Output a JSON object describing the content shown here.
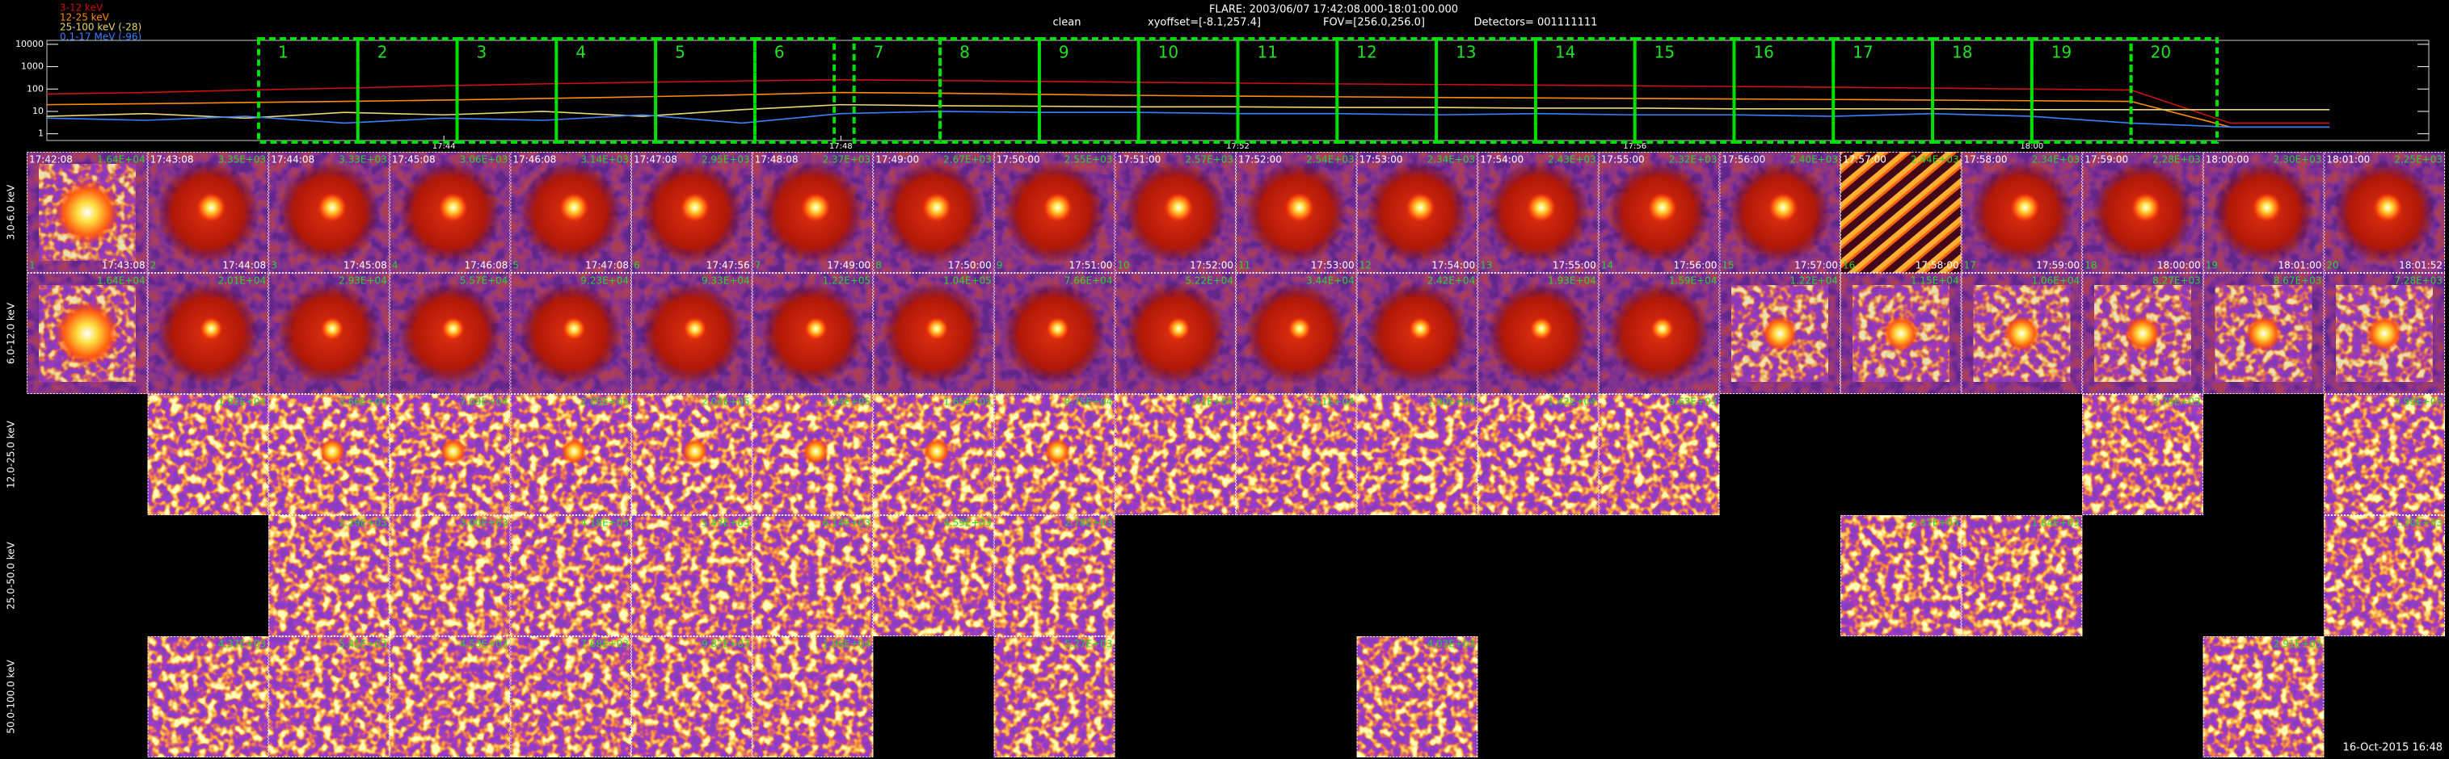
{
  "header": {
    "title": "FLARE: 2003/06/07 17:42:08.000-18:01:00.000",
    "method": "clean",
    "xyoffset": "xyoffset=[-8.1,257.4]",
    "fov": "FOV=[256.0,256.0]",
    "detectors": "Detectors= 001111111"
  },
  "chart_data": {
    "type": "line",
    "log_y": true,
    "x": [
      "17:40",
      "17:41",
      "17:42",
      "17:43",
      "17:44",
      "17:45",
      "17:46",
      "17:47",
      "17:48",
      "17:49",
      "17:50",
      "17:51",
      "17:52",
      "17:53",
      "17:54",
      "17:55",
      "17:56",
      "17:57",
      "17:58",
      "17:59",
      "18:00",
      "18:01",
      "18:02",
      "18:03"
    ],
    "xlim": [
      "17:40",
      "18:04"
    ],
    "xticks": [
      "17:44",
      "17:48",
      "17:52",
      "17:56",
      "18:00"
    ],
    "ylim": [
      0.5,
      15000
    ],
    "yticks": [
      1,
      10,
      100,
      1000,
      10000
    ],
    "series": [
      {
        "name": "3-12 keV",
        "color": "#d01010",
        "values": [
          60,
          70,
          90,
          110,
          140,
          170,
          200,
          230,
          260,
          240,
          220,
          200,
          185,
          170,
          160,
          150,
          140,
          130,
          120,
          110,
          100,
          90,
          3,
          3
        ]
      },
      {
        "name": "12-25 keV",
        "color": "#ff8c00",
        "values": [
          20,
          22,
          25,
          28,
          32,
          38,
          45,
          55,
          70,
          65,
          58,
          52,
          48,
          45,
          42,
          40,
          38,
          36,
          34,
          32,
          30,
          28,
          2,
          2
        ]
      },
      {
        "name": "25-100 keV (-28)",
        "color": "#e8d870",
        "values": [
          6,
          8,
          5,
          9,
          7,
          10,
          6,
          12,
          20,
          18,
          17,
          16,
          16,
          15,
          15,
          14,
          14,
          13,
          13,
          13,
          12,
          12,
          12,
          12
        ]
      },
      {
        "name": "0.1-17 MeV (-96)",
        "color": "#3a7fff",
        "values": [
          5,
          4,
          6,
          3,
          5,
          4,
          7,
          3,
          8,
          10,
          9,
          9,
          8,
          8,
          7,
          8,
          7,
          7,
          6,
          8,
          6,
          3,
          2,
          2
        ]
      }
    ]
  },
  "intervals": [
    {
      "label": 1,
      "start": "17:42:08",
      "end": "17:43:08"
    },
    {
      "label": 2,
      "start": "17:43:08",
      "end": "17:44:08"
    },
    {
      "label": 3,
      "start": "17:44:08",
      "end": "17:45:08"
    },
    {
      "label": 4,
      "start": "17:45:08",
      "end": "17:46:08"
    },
    {
      "label": 5,
      "start": "17:46:08",
      "end": "17:47:08"
    },
    {
      "label": 6,
      "start": "17:47:08",
      "end": "17:47:56"
    },
    {
      "label": 7,
      "start": "17:48:08",
      "end": "17:49:00"
    },
    {
      "label": 8,
      "start": "17:49:00",
      "end": "17:50:00"
    },
    {
      "label": 9,
      "start": "17:50:00",
      "end": "17:51:00"
    },
    {
      "label": 10,
      "start": "17:51:00",
      "end": "17:52:00"
    },
    {
      "label": 11,
      "start": "17:52:00",
      "end": "17:53:00"
    },
    {
      "label": 12,
      "start": "17:53:00",
      "end": "17:54:00"
    },
    {
      "label": 13,
      "start": "17:54:00",
      "end": "17:55:00"
    },
    {
      "label": 14,
      "start": "17:55:00",
      "end": "17:56:00"
    },
    {
      "label": 15,
      "start": "17:56:00",
      "end": "17:57:00"
    },
    {
      "label": 16,
      "start": "17:57:00",
      "end": "17:58:00"
    },
    {
      "label": 17,
      "start": "17:58:00",
      "end": "17:59:00"
    },
    {
      "label": 18,
      "start": "17:59:00",
      "end": "18:00:00"
    },
    {
      "label": 19,
      "start": "18:00:00",
      "end": "18:01:00"
    },
    {
      "label": 20,
      "start": "18:01:00",
      "end": "18:01:52"
    }
  ],
  "image_grid": {
    "rows": [
      {
        "label": "3.0-6.0 keV",
        "fluxes": [
          "1.64E+04",
          "3.35E+03",
          "3.33E+03",
          "3.06E+03",
          "3.14E+03",
          "2.95E+03",
          "2.37E+03",
          "2.67E+03",
          "2.55E+03",
          "2.57E+03",
          "2.54E+03",
          "2.34E+03",
          "2.43E+03",
          "2.32E+03",
          "2.40E+03",
          "2.44E+03",
          "2.34E+03",
          "2.28E+03",
          "2.30E+03",
          "2.25E+03"
        ]
      },
      {
        "label": "6.0-12.0 keV",
        "fluxes": [
          "1.64E+04",
          "2.01E+04",
          "2.93E+04",
          "5.57E+04",
          "9.23E+04",
          "9.33E+04",
          "1.22E+05",
          "1.04E+05",
          "7.66E+04",
          "5.22E+04",
          "3.44E+04",
          "2.42E+04",
          "1.93E+04",
          "1.59E+04",
          "1.22E+04",
          "1.15E+04",
          "1.06E+04",
          "8.27E+03",
          "8.67E+03",
          "7.28E+03"
        ]
      },
      {
        "label": "12.0-25.0 keV",
        "fluxes": [
          null,
          "1.92E+04",
          "3.66E+04",
          "7.09E+04",
          "2.05E+05",
          "2.04E+05",
          "2.44E+05",
          "1.65E+05",
          "8.75E+04",
          "4.41E+04",
          "2.51E+04",
          "1.90E+04",
          "1.42E+04",
          "9.63E+03",
          null,
          null,
          null,
          "3.75E+03",
          null,
          "1.99E+03"
        ]
      },
      {
        "label": "25.0-50.0 keV",
        "fluxes": [
          null,
          null,
          "2.29E+03",
          "3.00E+03",
          "4.18E+03",
          "5.43E+03",
          "6.14E+03",
          "4.59E+03",
          "2.78E+03",
          null,
          null,
          null,
          null,
          null,
          null,
          "2.37E+03",
          "1.84E+03",
          null,
          null,
          "1.20E+03"
        ]
      },
      {
        "label": "50.0-100.0 keV",
        "fluxes": [
          null,
          "4.37E+03",
          "5.45E+03",
          "4.53E+03",
          "7.68E+03",
          "9.82E+03",
          "1.06E+04",
          null,
          "5.27E+03",
          null,
          null,
          "4.03E+03",
          null,
          null,
          null,
          null,
          null,
          null,
          "2.91E+03",
          null
        ]
      }
    ]
  },
  "footer": {
    "timestamp": "16-Oct-2015 16:48"
  }
}
